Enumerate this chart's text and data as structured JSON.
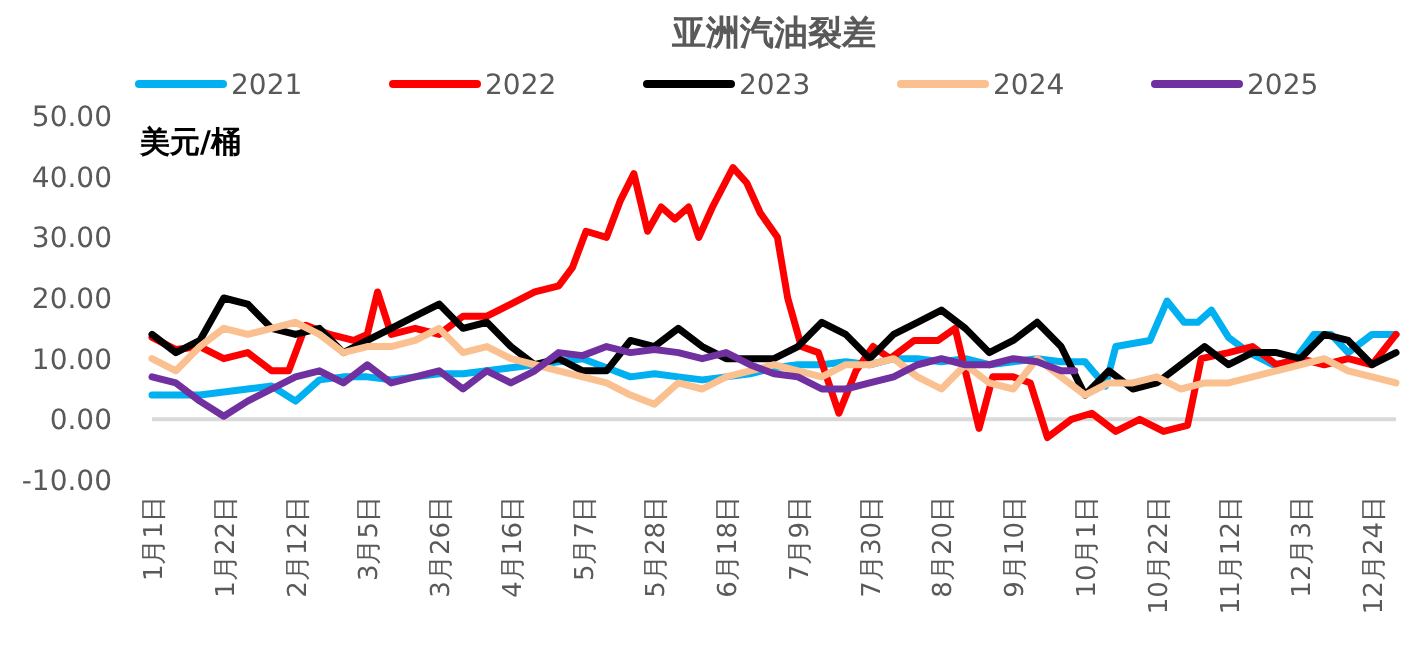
{
  "chart_data": {
    "type": "line",
    "title": "亚洲汽油裂差",
    "ylabel": "美元/桶",
    "xlim": [
      "--01-01",
      "--12-31"
    ],
    "xticks": [
      {
        "value": "--01-01",
        "label": "1月1日"
      },
      {
        "value": "--01-22",
        "label": "1月22日"
      },
      {
        "value": "--02-12",
        "label": "2月12日"
      },
      {
        "value": "--03-05",
        "label": "3月5日"
      },
      {
        "value": "--03-26",
        "label": "3月26日"
      },
      {
        "value": "--04-16",
        "label": "4月16日"
      },
      {
        "value": "--05-07",
        "label": "5月7日"
      },
      {
        "value": "--05-28",
        "label": "5月28日"
      },
      {
        "value": "--06-18",
        "label": "6月18日"
      },
      {
        "value": "--07-09",
        "label": "7月9日"
      },
      {
        "value": "--07-30",
        "label": "7月30日"
      },
      {
        "value": "--08-20",
        "label": "8月20日"
      },
      {
        "value": "--09-10",
        "label": "9月10日"
      },
      {
        "value": "--10-01",
        "label": "10月1日"
      },
      {
        "value": "--10-22",
        "label": "10月22日"
      },
      {
        "value": "--11-12",
        "label": "11月12日"
      },
      {
        "value": "--12-03",
        "label": "12月3日"
      },
      {
        "value": "--12-24",
        "label": "12月24日"
      }
    ],
    "ylim": [
      -10,
      50
    ],
    "yticks": [
      {
        "value": -10,
        "label": "-10.00"
      },
      {
        "value": 0,
        "label": "0.00"
      },
      {
        "value": 10,
        "label": "10.00"
      },
      {
        "value": 20,
        "label": "20.00"
      },
      {
        "value": 30,
        "label": "30.00"
      },
      {
        "value": 40,
        "label": "40.00"
      },
      {
        "value": 50,
        "label": "50.00"
      }
    ],
    "legend": "top",
    "series": [
      {
        "name": "2021",
        "color": "#00b0f0",
        "x": [
          "--01-01",
          "--01-08",
          "--01-15",
          "--01-22",
          "--01-29",
          "--02-05",
          "--02-12",
          "--02-19",
          "--02-26",
          "--03-05",
          "--03-12",
          "--03-19",
          "--03-26",
          "--04-02",
          "--04-09",
          "--04-16",
          "--04-23",
          "--04-30",
          "--05-07",
          "--05-14",
          "--05-21",
          "--05-28",
          "--06-04",
          "--06-11",
          "--06-18",
          "--06-25",
          "--07-02",
          "--07-09",
          "--07-16",
          "--07-23",
          "--07-30",
          "--08-06",
          "--08-13",
          "--08-20",
          "--08-27",
          "--09-03",
          "--09-10",
          "--09-17",
          "--09-24",
          "--10-01",
          "--10-07",
          "--10-10",
          "--10-20",
          "--10-25",
          "--10-30",
          "--11-03",
          "--11-07",
          "--11-12",
          "--11-18",
          "--11-25",
          "--12-01",
          "--12-07",
          "--12-12",
          "--12-17",
          "--12-24",
          "--12-31"
        ],
        "values": [
          4,
          4,
          4,
          4.5,
          5,
          5.5,
          3,
          6.5,
          7,
          7,
          6.5,
          7,
          7.5,
          7.5,
          8,
          8.5,
          9,
          9.5,
          10,
          8.5,
          7,
          7.5,
          7,
          6.5,
          7,
          7.5,
          8.5,
          9,
          9,
          9.5,
          9,
          10,
          10,
          9.5,
          10,
          9,
          9.5,
          10,
          9.5,
          9.5,
          5.5,
          12,
          13,
          19.5,
          16,
          16,
          18,
          13.5,
          11,
          9,
          9.5,
          14,
          14,
          11,
          14,
          14
        ]
      },
      {
        "name": "2022",
        "color": "#ff0000",
        "x": [
          "--01-01",
          "--01-08",
          "--01-15",
          "--01-22",
          "--01-29",
          "--02-05",
          "--02-10",
          "--02-15",
          "--02-22",
          "--03-01",
          "--03-05",
          "--03-08",
          "--03-12",
          "--03-19",
          "--03-26",
          "--04-02",
          "--04-09",
          "--04-16",
          "--04-23",
          "--04-30",
          "--05-04",
          "--05-08",
          "--05-14",
          "--05-18",
          "--05-22",
          "--05-26",
          "--05-30",
          "--06-03",
          "--06-07",
          "--06-10",
          "--06-14",
          "--06-20",
          "--06-24",
          "--06-28",
          "--07-03",
          "--07-06",
          "--07-10",
          "--07-15",
          "--07-21",
          "--07-26",
          "--07-31",
          "--08-05",
          "--08-12",
          "--08-19",
          "--08-24",
          "--08-31",
          "--09-04",
          "--09-10",
          "--09-15",
          "--09-20",
          "--09-27",
          "--10-03",
          "--10-10",
          "--10-17",
          "--10-24",
          "--10-31",
          "--11-04",
          "--11-12",
          "--11-19",
          "--11-26",
          "--12-03",
          "--12-10",
          "--12-17",
          "--12-24",
          "--12-31"
        ],
        "values": [
          13.5,
          11.5,
          12,
          10,
          11,
          8,
          8,
          15.5,
          14,
          13,
          14,
          21,
          14,
          15,
          14,
          17,
          17,
          19,
          21,
          22,
          25,
          31,
          30,
          36,
          40.5,
          31,
          35,
          33,
          35,
          30,
          35,
          41.5,
          39,
          34,
          30,
          20,
          12,
          11,
          1,
          8,
          12,
          10,
          13,
          13,
          15,
          -1.5,
          7,
          7,
          6,
          -3,
          0,
          1,
          -2,
          0,
          -2,
          -1,
          10,
          11,
          12,
          9,
          10,
          9,
          10,
          9,
          14
        ]
      },
      {
        "name": "2023",
        "color": "#000000",
        "x": [
          "--01-01",
          "--01-08",
          "--01-15",
          "--01-22",
          "--01-29",
          "--02-05",
          "--02-12",
          "--02-19",
          "--02-26",
          "--03-05",
          "--03-12",
          "--03-19",
          "--03-26",
          "--04-02",
          "--04-09",
          "--04-16",
          "--04-23",
          "--04-30",
          "--05-07",
          "--05-14",
          "--05-21",
          "--05-28",
          "--06-04",
          "--06-11",
          "--06-18",
          "--06-25",
          "--07-02",
          "--07-09",
          "--07-16",
          "--07-23",
          "--07-30",
          "--08-06",
          "--08-13",
          "--08-20",
          "--08-27",
          "--09-03",
          "--09-10",
          "--09-17",
          "--09-24",
          "--10-01",
          "--10-08",
          "--10-15",
          "--10-22",
          "--10-29",
          "--11-05",
          "--11-12",
          "--11-19",
          "--11-26",
          "--12-03",
          "--12-10",
          "--12-17",
          "--12-24",
          "--12-31"
        ],
        "values": [
          14,
          11,
          13,
          20,
          19,
          15,
          14,
          15,
          11,
          13,
          15,
          17,
          19,
          15,
          16,
          12,
          9,
          10,
          8,
          8,
          13,
          12,
          15,
          12,
          10,
          10,
          10,
          12,
          16,
          14,
          10,
          14,
          16,
          18,
          15,
          11,
          13,
          16,
          12,
          4,
          8,
          5,
          6,
          9,
          12,
          9,
          11,
          11,
          10,
          14,
          13,
          9,
          11
        ]
      },
      {
        "name": "2024",
        "color": "#fac090",
        "x": [
          "--01-01",
          "--01-08",
          "--01-15",
          "--01-22",
          "--01-29",
          "--02-05",
          "--02-12",
          "--02-19",
          "--02-26",
          "--03-05",
          "--03-12",
          "--03-19",
          "--03-26",
          "--04-02",
          "--04-09",
          "--04-16",
          "--04-23",
          "--04-30",
          "--05-07",
          "--05-14",
          "--05-21",
          "--05-28",
          "--06-04",
          "--06-11",
          "--06-18",
          "--06-25",
          "--07-02",
          "--07-09",
          "--07-16",
          "--07-23",
          "--07-30",
          "--08-06",
          "--08-13",
          "--08-20",
          "--08-27",
          "--09-03",
          "--09-10",
          "--09-17",
          "--09-24",
          "--10-01",
          "--10-08",
          "--10-15",
          "--10-22",
          "--10-29",
          "--11-05",
          "--11-12",
          "--11-19",
          "--11-26",
          "--12-03",
          "--12-10",
          "--12-17",
          "--12-24",
          "--12-31"
        ],
        "values": [
          10,
          8,
          12,
          15,
          14,
          15,
          16,
          14,
          11,
          12,
          12,
          13,
          15,
          11,
          12,
          10,
          9,
          8,
          7,
          6,
          4,
          2.5,
          6,
          5,
          7,
          8,
          9,
          8,
          7,
          9,
          9,
          10,
          7,
          5,
          9,
          6,
          5,
          10,
          7,
          4,
          6,
          6,
          7,
          5,
          6,
          6,
          7,
          8,
          9,
          10,
          8,
          7,
          6
        ]
      },
      {
        "name": "2025",
        "color": "#7030a0",
        "x": [
          "--01-01",
          "--01-08",
          "--01-15",
          "--01-22",
          "--01-29",
          "--02-05",
          "--02-12",
          "--02-19",
          "--02-26",
          "--03-05",
          "--03-12",
          "--03-19",
          "--03-26",
          "--04-02",
          "--04-09",
          "--04-16",
          "--04-23",
          "--04-30",
          "--05-07",
          "--05-14",
          "--05-21",
          "--05-28",
          "--06-04",
          "--06-11",
          "--06-18",
          "--06-25",
          "--07-02",
          "--07-09",
          "--07-16",
          "--07-23",
          "--07-30",
          "--08-06",
          "--08-13",
          "--08-20",
          "--08-27",
          "--09-03",
          "--09-10",
          "--09-17",
          "--09-24",
          "--09-28"
        ],
        "values": [
          7,
          6,
          3,
          0.5,
          3,
          5,
          7,
          8,
          6,
          9,
          6,
          7,
          8,
          5,
          8,
          6,
          8,
          11,
          10.5,
          12,
          11,
          11.5,
          11,
          10,
          11,
          9,
          7.5,
          7,
          5,
          5,
          6,
          7,
          9,
          10,
          9,
          9,
          10,
          9.5,
          8,
          8
        ]
      }
    ]
  }
}
